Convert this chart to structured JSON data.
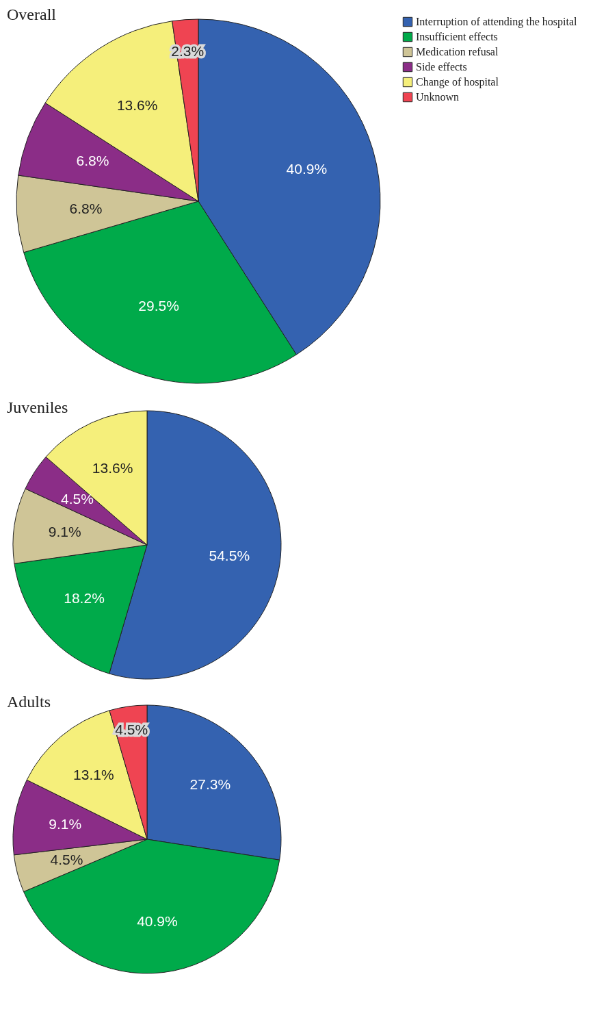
{
  "chart_data": [
    {
      "type": "pie",
      "title": "Overall",
      "categories": [
        "Interruption of attending the hospital",
        "Insufficient effects",
        "Medication refusal",
        "Side effects",
        "Change of hospital",
        "Unknown"
      ],
      "values": [
        40.9,
        29.5,
        6.8,
        6.8,
        13.6,
        2.3
      ],
      "value_labels": [
        "40.9%",
        "29.5%",
        "6.8%",
        "6.8%",
        "13.6%",
        "2.3%"
      ],
      "colors": [
        "#3462b0",
        "#00aa4a",
        "#cfc597",
        "#8b2d87",
        "#f5ef7b",
        "#ef4452"
      ],
      "legend": "top right"
    },
    {
      "type": "pie",
      "title": "Juveniles",
      "categories": [
        null,
        null,
        null,
        null,
        null
      ],
      "values": [
        54.5,
        18.2,
        9.1,
        4.5,
        13.6
      ],
      "value_labels": [
        "54.5%",
        "18.2%",
        "9.1%",
        "4.5%",
        "13.6%"
      ],
      "colors": [
        "#3462b0",
        "#00aa4a",
        "#cfc597",
        "#8b2d87",
        "#f5ef7b"
      ]
    },
    {
      "type": "pie",
      "title": "Adults",
      "categories": [
        null,
        null,
        null,
        null,
        null,
        null
      ],
      "values": [
        27.3,
        40.9,
        4.5,
        9.1,
        13.1,
        4.5
      ],
      "value_labels": [
        "27.3%",
        "40.9%",
        "4.5%",
        "9.1%",
        "13.1%",
        "4.5%"
      ],
      "colors": [
        "#3462b0",
        "#00aa4a",
        "#cfc597",
        "#8b2d87",
        "#f5ef7b",
        "#ef4452"
      ]
    }
  ]
}
